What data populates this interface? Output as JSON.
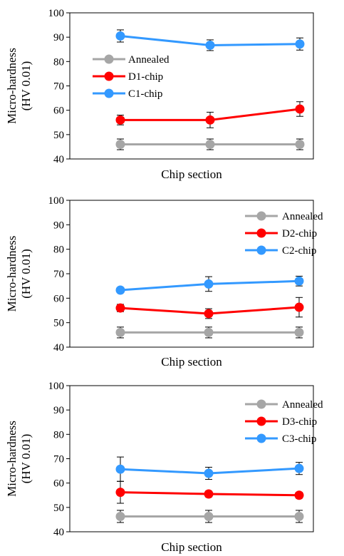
{
  "chart_data": [
    {
      "type": "line",
      "xlabel": "Chip section",
      "ylabel": [
        "Micro-hardness",
        "(HV 0.01)"
      ],
      "ylim": [
        40,
        100
      ],
      "yticks": [
        40,
        50,
        60,
        70,
        80,
        90,
        100
      ],
      "legend_position": "left",
      "categories": [
        "",
        "",
        ""
      ],
      "series": [
        {
          "name": "Annealed",
          "color": "#a6a6a6",
          "values": [
            46,
            46,
            46
          ],
          "errors": [
            2.2,
            2.2,
            2.2
          ]
        },
        {
          "name": "D1-chip",
          "color": "#ff0000",
          "values": [
            56,
            56,
            60.5
          ],
          "errors": [
            2,
            3.2,
            3
          ]
        },
        {
          "name": "C1-chip",
          "color": "#3399ff",
          "values": [
            90.5,
            86.7,
            87.2
          ],
          "errors": [
            2.5,
            2.2,
            2.5
          ]
        }
      ]
    },
    {
      "type": "line",
      "xlabel": "Chip section",
      "ylabel": [
        "Micro-hardness",
        "(HV 0.01)"
      ],
      "ylim": [
        40,
        100
      ],
      "yticks": [
        40,
        50,
        60,
        70,
        80,
        90,
        100
      ],
      "legend_position": "top-right",
      "categories": [
        "",
        "",
        ""
      ],
      "series": [
        {
          "name": "Annealed",
          "color": "#a6a6a6",
          "values": [
            46,
            46,
            46
          ],
          "errors": [
            2.2,
            2.2,
            2.2
          ]
        },
        {
          "name": "D2-chip",
          "color": "#ff0000",
          "values": [
            56,
            53.7,
            56.3
          ],
          "errors": [
            1.5,
            2,
            4
          ]
        },
        {
          "name": "C2-chip",
          "color": "#3399ff",
          "values": [
            63.3,
            65.8,
            67
          ],
          "errors": [
            1,
            3,
            2
          ]
        }
      ]
    },
    {
      "type": "line",
      "xlabel": "Chip section",
      "ylabel": [
        "Micro-hardness",
        "(HV 0.01)"
      ],
      "ylim": [
        40,
        100
      ],
      "yticks": [
        40,
        50,
        60,
        70,
        80,
        90,
        100
      ],
      "legend_position": "top-right",
      "categories": [
        "",
        "",
        ""
      ],
      "series": [
        {
          "name": "Annealed",
          "color": "#a6a6a6",
          "values": [
            46.3,
            46.3,
            46.3
          ],
          "errors": [
            2.5,
            2.5,
            2.5
          ]
        },
        {
          "name": "D3-chip",
          "color": "#ff0000",
          "values": [
            56.2,
            55.5,
            55
          ],
          "errors": [
            4.5,
            1.2,
            1.2
          ]
        },
        {
          "name": "C3-chip",
          "color": "#3399ff",
          "values": [
            65.7,
            64,
            66
          ],
          "errors": [
            5,
            2.5,
            2.5
          ]
        }
      ]
    }
  ]
}
